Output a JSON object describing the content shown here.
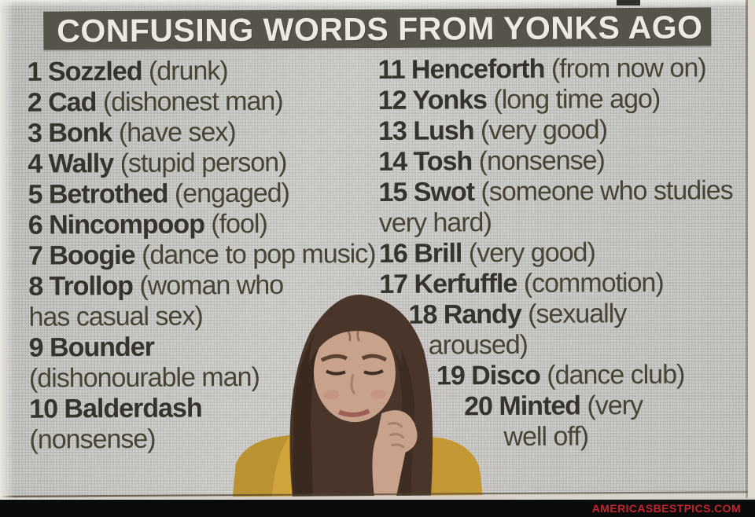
{
  "headline": {
    "title": "CONFUSING WORDS FROM YONKS AGO"
  },
  "word_list": {
    "entries": [
      {
        "num": "1",
        "word": "Sozzled",
        "def": "(drunk)"
      },
      {
        "num": "2",
        "word": "Cad",
        "def": "(dishonest man)"
      },
      {
        "num": "3",
        "word": "Bonk",
        "def": "(have sex)"
      },
      {
        "num": "4",
        "word": "Wally",
        "def": "(stupid person)"
      },
      {
        "num": "5",
        "word": "Betrothed",
        "def": "(engaged)"
      },
      {
        "num": "6",
        "word": "Nincompoop",
        "def": "(fool)"
      },
      {
        "num": "7",
        "word": "Boogie",
        "def": "(dance to pop music)"
      },
      {
        "num": "8",
        "word": "Trollop",
        "def": "(woman who\nhas casual sex)"
      },
      {
        "num": "9",
        "word": "Bounder",
        "def": "\n(dishonourable man)"
      },
      {
        "num": "10",
        "word": "Balderdash",
        "def": "\n(nonsense)"
      },
      {
        "num": "11",
        "word": "Henceforth",
        "def": "(from now on)"
      },
      {
        "num": "12",
        "word": "Yonks",
        "def": "(long time ago)"
      },
      {
        "num": "13",
        "word": "Lush",
        "def": "(very good)"
      },
      {
        "num": "14",
        "word": "Tosh",
        "def": "(nonsense)"
      },
      {
        "num": "15",
        "word": "Swot",
        "def": "(someone who studies\nvery hard)"
      },
      {
        "num": "16",
        "word": "Brill",
        "def": "(very good)"
      },
      {
        "num": "17",
        "word": "Kerfuffle",
        "def": "(commotion)"
      },
      {
        "num": "18",
        "word": "Randy",
        "def": "(sexually\naroused)"
      },
      {
        "num": "19",
        "word": "Disco",
        "def": "(dance club)"
      },
      {
        "num": "20",
        "word": "Minted",
        "def": "(very\nwell off)"
      }
    ]
  },
  "photo": {
    "description": "Puzzled girl in mustard jumper resting her chin on her hand"
  },
  "watermark": {
    "text": "AMERICASBESTPICS.COM"
  },
  "colors": {
    "paper": "#c7c6c2",
    "headline_bg": "#55534a",
    "headline_text": "#ece9e1",
    "ink_bold": "#35332c",
    "ink_regular": "#474437",
    "watermark_bar": "#0b0b0b",
    "watermark_text": "#c1272d",
    "sweater_yellow": "#cfa53b",
    "hair_brown": "#4a352a"
  }
}
